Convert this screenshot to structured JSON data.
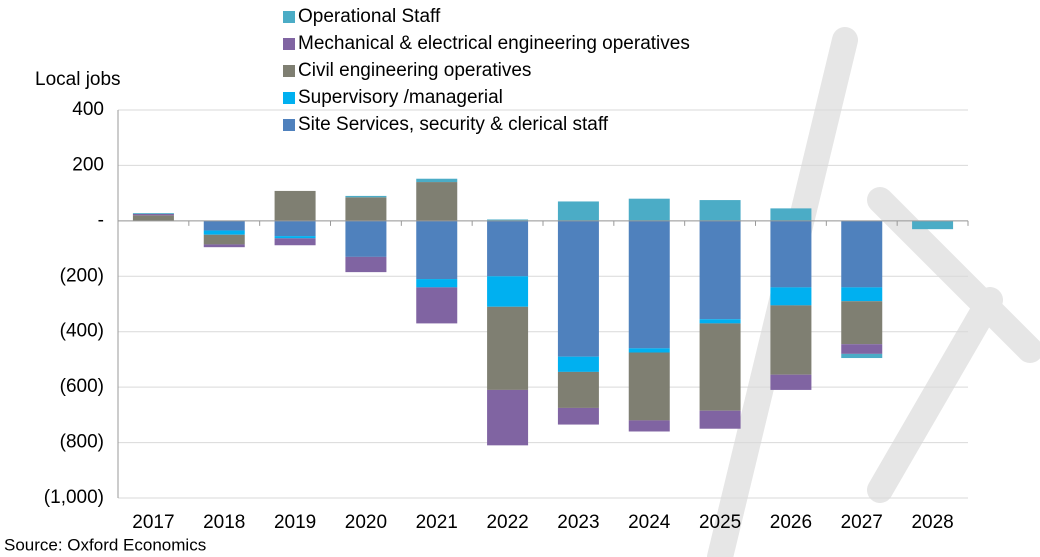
{
  "chart_data": {
    "type": "stacked_bar",
    "y_axis_label": "Local jobs",
    "source": "Source: Oxford Economics",
    "categories": [
      "2017",
      "2018",
      "2019",
      "2020",
      "2021",
      "2022",
      "2023",
      "2024",
      "2025",
      "2026",
      "2027",
      "2028"
    ],
    "series": [
      {
        "name": "Site Services, security & clerical staff",
        "color": "#4f81bd",
        "values": [
          0,
          -35,
          -55,
          -130,
          -210,
          -200,
          -490,
          -460,
          -355,
          -240,
          -240,
          0
        ]
      },
      {
        "name": "Supervisory /managerial",
        "color": "#00b0f0",
        "values": [
          0,
          -15,
          -8,
          0,
          -30,
          -110,
          -55,
          -15,
          -15,
          -65,
          -50,
          0
        ]
      },
      {
        "name": "Civil engineering operatives",
        "color": "#7f7f72",
        "values": [
          20,
          -35,
          108,
          85,
          140,
          -300,
          -130,
          -245,
          -315,
          -250,
          -155,
          0
        ]
      },
      {
        "name": "Mechanical & electrical engineering operatives",
        "color": "#8064a2",
        "values": [
          5,
          -10,
          -25,
          -55,
          -130,
          -200,
          -60,
          -40,
          -65,
          -55,
          -35,
          0
        ]
      },
      {
        "name": "Operational Staff",
        "color": "#4bacc6",
        "values": [
          3,
          0,
          0,
          5,
          12,
          5,
          70,
          80,
          75,
          45,
          -15,
          -30
        ]
      }
    ],
    "ylim": [
      -1000,
      400
    ],
    "yticks": [
      400,
      200,
      {
        "value": 0,
        "label": "-"
      },
      {
        "value": -200,
        "label": "(200)"
      },
      {
        "value": -400,
        "label": "(400)"
      },
      {
        "value": -600,
        "label": "(600)"
      },
      {
        "value": -800,
        "label": "(800)"
      },
      {
        "value": -1000,
        "label": "(1,000)"
      }
    ],
    "grid": true
  }
}
